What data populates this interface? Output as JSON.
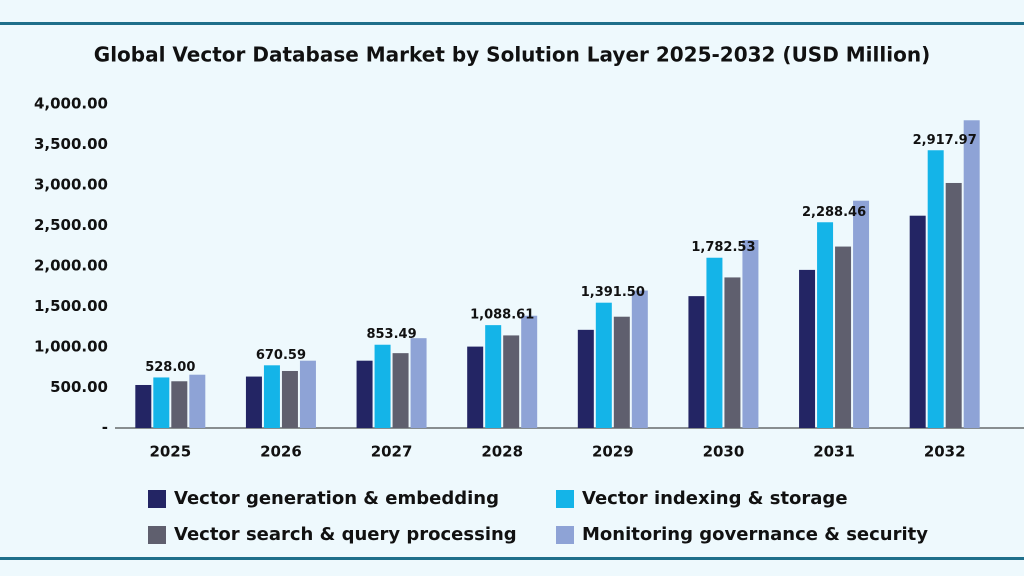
{
  "chart_data": {
    "type": "bar",
    "title": "Global Vector Database Market by Solution Layer 2025-2032 (USD Million)",
    "categories": [
      "2025",
      "2026",
      "2027",
      "2028",
      "2029",
      "2030",
      "2031",
      "2032"
    ],
    "series": [
      {
        "name": "Vector generation & embedding",
        "color": "#232564",
        "values": [
          531,
          635,
          831,
          1005,
          1212,
          1628,
          1952,
          2621
        ]
      },
      {
        "name": "Vector indexing & storage",
        "color": "#14b4e8",
        "values": [
          624,
          774,
          1028,
          1270,
          1547,
          2102,
          2540,
          3429
        ]
      },
      {
        "name": "Vector search & query processing",
        "color": "#5f5f6e",
        "values": [
          577,
          704,
          924,
          1143,
          1374,
          1859,
          2240,
          3025
        ]
      },
      {
        "name": "Monitoring governance & security",
        "color": "#8ea3d6",
        "values": [
          658,
          831,
          1109,
          1386,
          1697,
          2321,
          2806,
          3799
        ]
      }
    ],
    "annotations": [
      "528.00",
      "670.59",
      "853.49",
      "1,088.61",
      "1,391.50",
      "1,782.53",
      "2,288.46",
      "2,917.97"
    ],
    "ylim": [
      0,
      4000
    ],
    "yticks": [
      {
        "value": 0,
        "label": "-"
      },
      {
        "value": 500,
        "label": "500.00"
      },
      {
        "value": 1000,
        "label": "1,000.00"
      },
      {
        "value": 1500,
        "label": "1,500.00"
      },
      {
        "value": 2000,
        "label": "2,000.00"
      },
      {
        "value": 2500,
        "label": "2,500.00"
      },
      {
        "value": 3000,
        "label": "3,000.00"
      },
      {
        "value": 3500,
        "label": "3,500.00"
      },
      {
        "value": 4000,
        "label": "4,000.00"
      }
    ],
    "grid": false
  }
}
